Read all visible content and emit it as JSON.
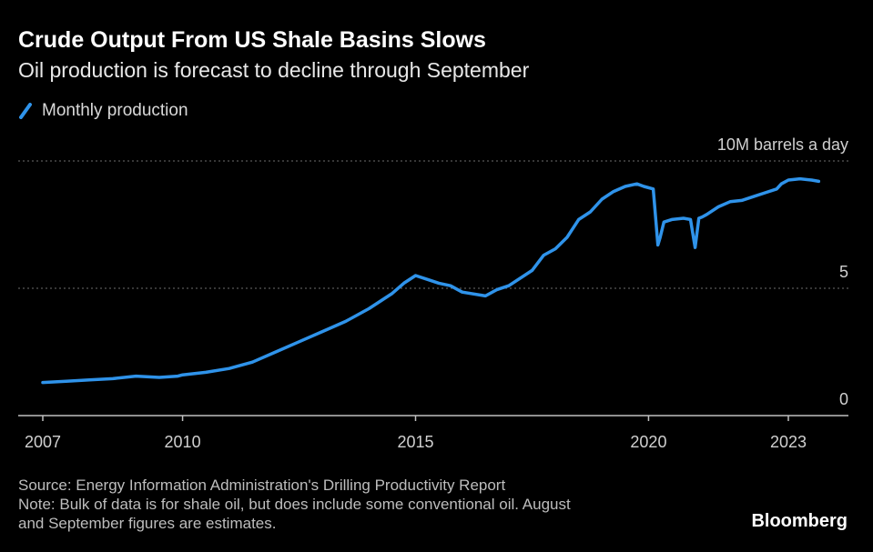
{
  "header": {
    "title": "Crude Output From US Shale Basins Slows",
    "subtitle": "Oil production is forecast to decline through September"
  },
  "legend": {
    "label": "Monthly production"
  },
  "colors": {
    "series": "#2f93ea",
    "background": "#000000",
    "grid": "#6e6e6e",
    "text": "#d0d0d0"
  },
  "chart_data": {
    "type": "line",
    "title": "Crude Output From US Shale Basins Slows",
    "subtitle": "Oil production is forecast to decline through September",
    "ylabel": "10M barrels a day",
    "xlim": [
      2007.0,
      2024.5
    ],
    "ylim": [
      0,
      10
    ],
    "x_ticks": [
      2007,
      2010,
      2015,
      2020,
      2023
    ],
    "x_tick_labels": [
      "2007",
      "2010",
      "2015",
      "2020",
      "2023"
    ],
    "y_ticks": [
      0,
      5,
      10
    ],
    "y_tick_labels": [
      "0",
      "5",
      "10M barrels a day"
    ],
    "grid": true,
    "series": [
      {
        "name": "Monthly production",
        "x": [
          2007.0,
          2007.5,
          2008.0,
          2008.5,
          2009.0,
          2009.5,
          2009.9,
          2010.0,
          2010.5,
          2011.0,
          2011.5,
          2012.0,
          2012.5,
          2013.0,
          2013.5,
          2014.0,
          2014.5,
          2014.75,
          2015.0,
          2015.25,
          2015.5,
          2015.75,
          2016.0,
          2016.5,
          2016.75,
          2017.0,
          2017.5,
          2017.75,
          2018.0,
          2018.25,
          2018.5,
          2018.75,
          2019.0,
          2019.25,
          2019.5,
          2019.75,
          2019.9,
          2020.1,
          2020.2,
          2020.25,
          2020.33,
          2020.5,
          2020.75,
          2020.9,
          2021.0,
          2021.08,
          2021.15,
          2021.25,
          2021.5,
          2021.75,
          2022.0,
          2022.25,
          2022.5,
          2022.75,
          2022.85,
          2023.0,
          2023.25,
          2023.5,
          2023.65
        ],
        "y": [
          1.3,
          1.35,
          1.4,
          1.45,
          1.55,
          1.5,
          1.55,
          1.6,
          1.7,
          1.85,
          2.1,
          2.5,
          2.9,
          3.3,
          3.7,
          4.2,
          4.8,
          5.2,
          5.5,
          5.35,
          5.2,
          5.1,
          4.85,
          4.7,
          4.95,
          5.1,
          5.7,
          6.3,
          6.55,
          7.0,
          7.7,
          8.0,
          8.5,
          8.8,
          9.0,
          9.1,
          9.0,
          8.9,
          6.7,
          7.0,
          7.6,
          7.7,
          7.75,
          7.7,
          6.6,
          7.75,
          7.8,
          7.9,
          8.2,
          8.4,
          8.45,
          8.6,
          8.75,
          8.9,
          9.1,
          9.25,
          9.3,
          9.25,
          9.2
        ]
      }
    ]
  },
  "footer": {
    "source": "Source: Energy Information Administration's Drilling Productivity Report",
    "note_line1": "Note: Bulk of data is for shale oil, but does include some conventional oil. August",
    "note_line2": "and September figures are estimates."
  },
  "brand": "Bloomberg"
}
